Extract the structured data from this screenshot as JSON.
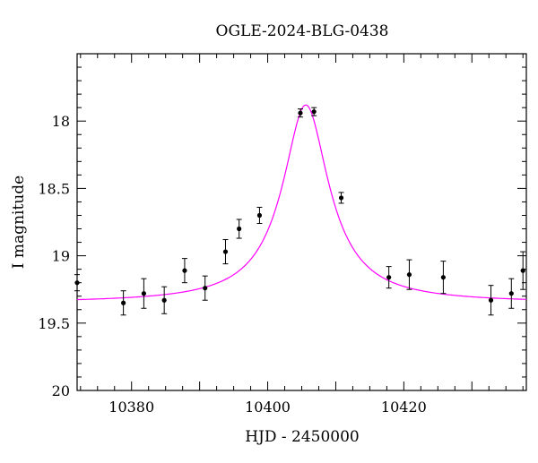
{
  "chart_data": {
    "type": "scatter",
    "title": "OGLE-2024-BLG-0438",
    "xlabel": "HJD - 2450000",
    "ylabel": "I magnitude",
    "xlim": [
      10372,
      10438
    ],
    "ylim": [
      20,
      17.5
    ],
    "y_inverted": true,
    "x_ticks": [
      10380,
      10400,
      10420
    ],
    "y_ticks": [
      18,
      18.5,
      19,
      19.5,
      20
    ],
    "y_tick_labels": [
      "18",
      "18.5",
      "19",
      "19.5",
      "20"
    ],
    "x_minor_step": 2.5,
    "y_minor_step": 0.1,
    "grid": false,
    "series": [
      {
        "kind": "points_with_errorbars",
        "color": "#000000",
        "points": [
          {
            "x": 10372.0,
            "y": 19.2,
            "err": 0.06
          },
          {
            "x": 10378.8,
            "y": 19.35,
            "err": 0.09
          },
          {
            "x": 10381.8,
            "y": 19.28,
            "err": 0.11
          },
          {
            "x": 10384.8,
            "y": 19.33,
            "err": 0.1
          },
          {
            "x": 10387.8,
            "y": 19.11,
            "err": 0.09
          },
          {
            "x": 10390.8,
            "y": 19.24,
            "err": 0.09
          },
          {
            "x": 10393.8,
            "y": 18.97,
            "err": 0.09
          },
          {
            "x": 10395.8,
            "y": 18.8,
            "err": 0.07
          },
          {
            "x": 10398.8,
            "y": 18.7,
            "err": 0.06
          },
          {
            "x": 10404.8,
            "y": 17.94,
            "err": 0.03
          },
          {
            "x": 10406.8,
            "y": 17.93,
            "err": 0.03
          },
          {
            "x": 10410.8,
            "y": 18.57,
            "err": 0.04
          },
          {
            "x": 10417.8,
            "y": 19.16,
            "err": 0.08
          },
          {
            "x": 10420.8,
            "y": 19.14,
            "err": 0.11
          },
          {
            "x": 10425.8,
            "y": 19.16,
            "err": 0.12
          },
          {
            "x": 10432.8,
            "y": 19.33,
            "err": 0.11
          },
          {
            "x": 10435.8,
            "y": 19.28,
            "err": 0.11
          },
          {
            "x": 10437.5,
            "y": 19.11,
            "err": 0.14
          }
        ]
      },
      {
        "kind": "model_curve",
        "color": "#ff00ff",
        "model": {
          "t0": 10405.6,
          "peak_mag": 17.88,
          "baseline_mag": 19.35,
          "width": 3.0
        }
      }
    ]
  }
}
